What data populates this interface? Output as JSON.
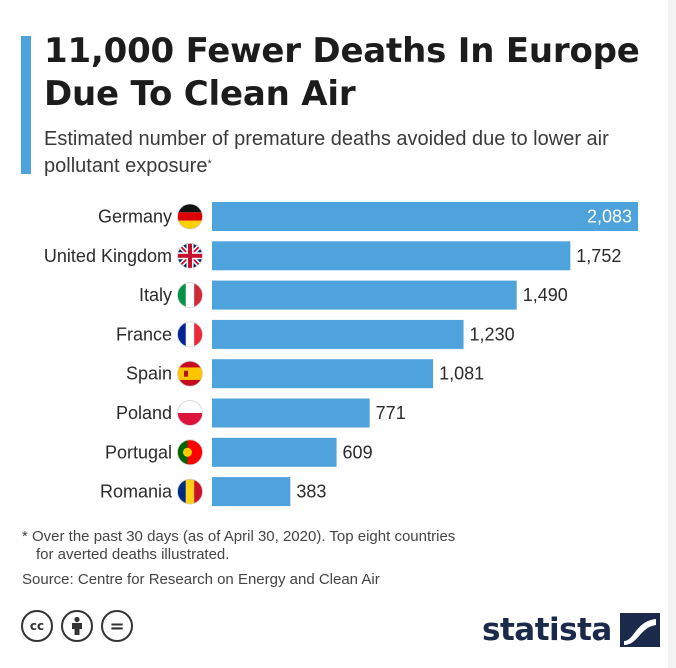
{
  "header": {
    "title": "11,000 Fewer Deaths In Europe Due To Clean Air",
    "subtitle": "Estimated number of premature deaths avoided due to lower air pollutant exposure",
    "subtitle_mark": "*"
  },
  "chart_data": {
    "type": "bar",
    "orientation": "horizontal",
    "categories": [
      "Germany",
      "United Kingdom",
      "Italy",
      "France",
      "Spain",
      "Poland",
      "Portugal",
      "Romania"
    ],
    "values": [
      2083,
      1752,
      1490,
      1230,
      1081,
      771,
      609,
      383
    ],
    "value_labels": [
      "2,083",
      "1,752",
      "1,490",
      "1,230",
      "1,081",
      "771",
      "609",
      "383"
    ],
    "flags": [
      "germany-flag-icon",
      "uk-flag-icon",
      "italy-flag-icon",
      "france-flag-icon",
      "spain-flag-icon",
      "poland-flag-icon",
      "portugal-flag-icon",
      "romania-flag-icon"
    ],
    "bar_color": "#4fa3dd",
    "xlim": [
      0,
      2083
    ],
    "grid": false,
    "legend": "none"
  },
  "footer": {
    "footnote_line1": "* Over the past 30 days (as of April 30, 2020). Top eight countries",
    "footnote_line2": "for averted deaths illustrated.",
    "source": "Source: Centre for Research on Energy and Clean Air",
    "brand": "statista",
    "cc_text": "cc",
    "nd_text": "="
  },
  "colors": {
    "accent": "#4fa3dd",
    "title": "#1c1c1c",
    "brand": "#1b2a4a"
  }
}
